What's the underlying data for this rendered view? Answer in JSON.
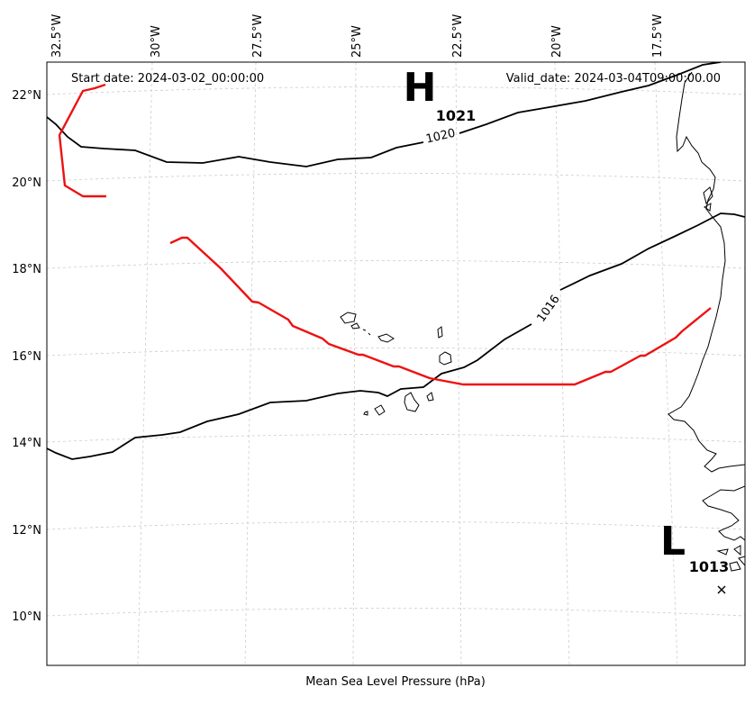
{
  "map": {
    "start_date": "Start date: 2024-03-02_00:00:00",
    "valid_date": "Valid_date: 2024-03-04T09:00:00.00",
    "caption": "Mean Sea Level Pressure (hPa)",
    "lon_labels": [
      "32.5°W",
      "30°W",
      "27.5°W",
      "25°W",
      "22.5°W",
      "20°W",
      "17.5°W"
    ],
    "lat_labels": [
      "22°N",
      "20°N",
      "18°N",
      "16°N",
      "14°N",
      "12°N",
      "10°N"
    ],
    "isobars": [
      {
        "value": 1020,
        "label": "1020"
      },
      {
        "value": 1016,
        "label": "1016"
      }
    ],
    "pressure_centers": [
      {
        "type": "H",
        "letter": "H",
        "value": "1021"
      },
      {
        "type": "L",
        "letter": "L",
        "value": "1013"
      }
    ],
    "colors": {
      "track": "#ee1111",
      "isobar": "#000000",
      "coast": "#000000",
      "grid": "#cccccc"
    }
  }
}
